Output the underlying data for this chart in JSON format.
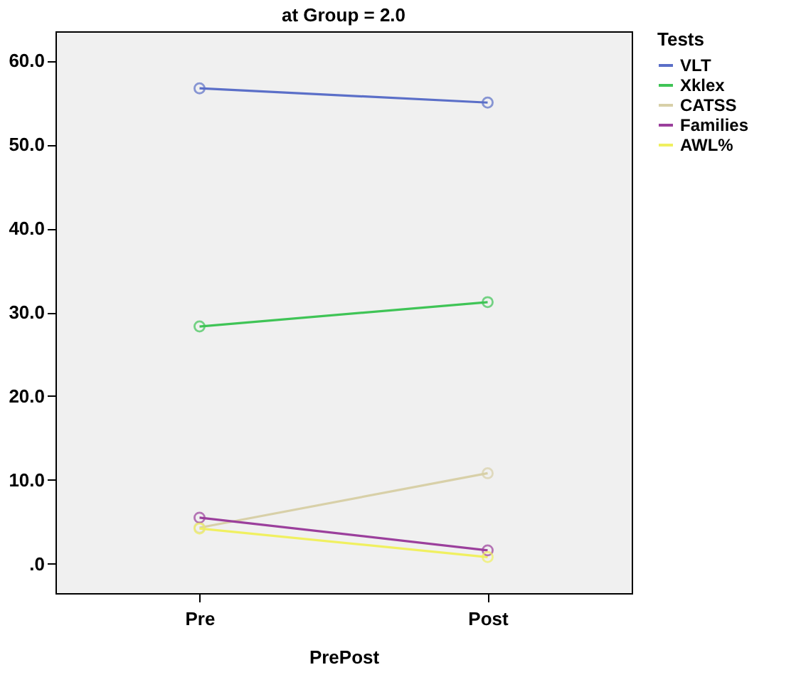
{
  "chart_data": {
    "type": "line",
    "title": "at Group = 2.0",
    "xlabel": "PrePost",
    "legend_title": "Tests",
    "categories": [
      "Pre",
      "Post"
    ],
    "series": [
      {
        "name": "VLT",
        "color": "#5b6fc8",
        "values": [
          56.7,
          55.0
        ]
      },
      {
        "name": "Xklex",
        "color": "#3fc456",
        "values": [
          28.3,
          31.2
        ]
      },
      {
        "name": "CATSS",
        "color": "#d8d0a8",
        "values": [
          4.3,
          10.8
        ]
      },
      {
        "name": "Families",
        "color": "#9b3f9c",
        "values": [
          5.5,
          1.6
        ]
      },
      {
        "name": "AWL%",
        "color": "#f0f060",
        "values": [
          4.2,
          0.8
        ]
      }
    ],
    "ylim": [
      -3.5,
      63.5
    ],
    "yticks": [
      {
        "value": 0,
        "label": ".0"
      },
      {
        "value": 10,
        "label": "10.0"
      },
      {
        "value": 20,
        "label": "20.0"
      },
      {
        "value": 30,
        "label": "30.0"
      },
      {
        "value": 40,
        "label": "40.0"
      },
      {
        "value": 50,
        "label": "50.0"
      },
      {
        "value": 60,
        "label": "60.0"
      }
    ],
    "grid": false,
    "legend": "right",
    "marker": "circle",
    "line_style": "solid"
  }
}
